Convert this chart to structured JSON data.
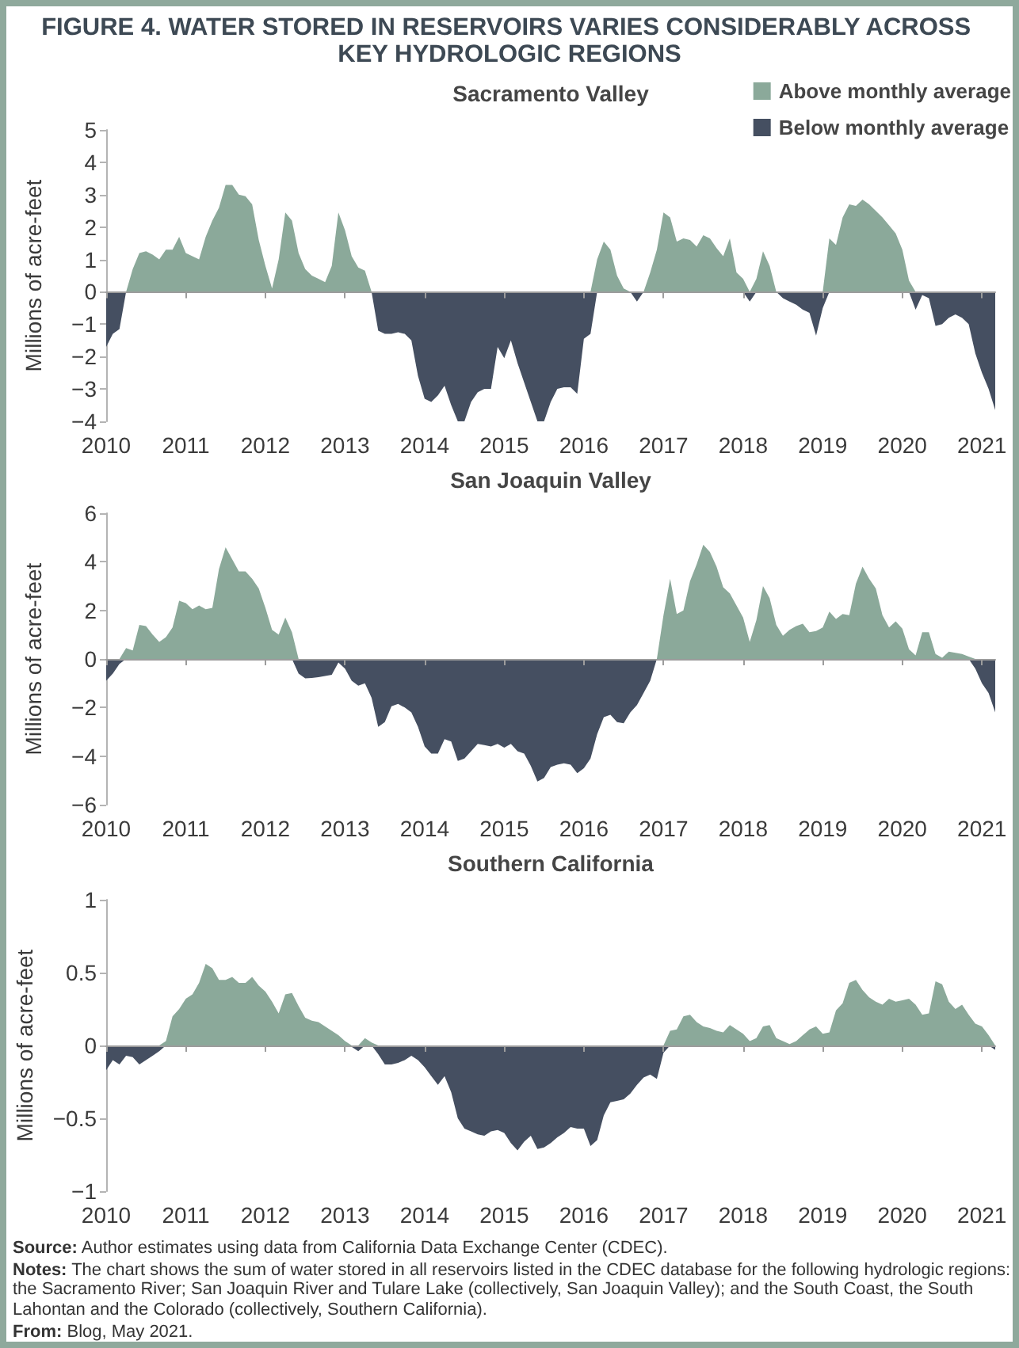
{
  "chart_data": [
    {
      "type": "area",
      "title": "FIGURE 4. WATER STORED IN RESERVOIRS VARIES CONSIDERABLY ACROSS KEY HYDROLOGIC REGIONS",
      "subtitle": "Sacramento Valley",
      "ylabel": "Millions of acre-feet",
      "x": [
        "2010-01",
        "2010-02",
        "2010-03",
        "2010-04",
        "2010-05",
        "2010-06",
        "2010-07",
        "2010-08",
        "2010-09",
        "2010-10",
        "2010-11",
        "2010-12",
        "2011-01",
        "2011-02",
        "2011-03",
        "2011-04",
        "2011-05",
        "2011-06",
        "2011-07",
        "2011-08",
        "2011-09",
        "2011-10",
        "2011-11",
        "2011-12",
        "2012-01",
        "2012-02",
        "2012-03",
        "2012-04",
        "2012-05",
        "2012-06",
        "2012-07",
        "2012-08",
        "2012-09",
        "2012-10",
        "2012-11",
        "2012-12",
        "2013-01",
        "2013-02",
        "2013-03",
        "2013-04",
        "2013-05",
        "2013-06",
        "2013-07",
        "2013-08",
        "2013-09",
        "2013-10",
        "2013-11",
        "2013-12",
        "2014-01",
        "2014-02",
        "2014-03",
        "2014-04",
        "2014-05",
        "2014-06",
        "2014-07",
        "2014-08",
        "2014-09",
        "2014-10",
        "2014-11",
        "2014-12",
        "2015-01",
        "2015-02",
        "2015-03",
        "2015-04",
        "2015-05",
        "2015-06",
        "2015-07",
        "2015-08",
        "2015-09",
        "2015-10",
        "2015-11",
        "2015-12",
        "2016-01",
        "2016-02",
        "2016-03",
        "2016-04",
        "2016-05",
        "2016-06",
        "2016-07",
        "2016-08",
        "2016-09",
        "2016-10",
        "2016-11",
        "2016-12",
        "2017-01",
        "2017-02",
        "2017-03",
        "2017-04",
        "2017-05",
        "2017-06",
        "2017-07",
        "2017-08",
        "2017-09",
        "2017-10",
        "2017-11",
        "2017-12",
        "2018-01",
        "2018-02",
        "2018-03",
        "2018-04",
        "2018-05",
        "2018-06",
        "2018-07",
        "2018-08",
        "2018-09",
        "2018-10",
        "2018-11",
        "2018-12",
        "2019-01",
        "2019-02",
        "2019-03",
        "2019-04",
        "2019-05",
        "2019-06",
        "2019-07",
        "2019-08",
        "2019-09",
        "2019-10",
        "2019-11",
        "2019-12",
        "2020-01",
        "2020-02",
        "2020-03",
        "2020-04",
        "2020-05",
        "2020-06",
        "2020-07",
        "2020-08",
        "2020-09",
        "2020-10",
        "2020-11",
        "2020-12",
        "2021-01",
        "2021-02",
        "2021-03"
      ],
      "xlim": [
        "2010-01",
        "2021-03"
      ],
      "xticks": [
        "2010",
        "2011",
        "2012",
        "2013",
        "2014",
        "2015",
        "2016",
        "2017",
        "2018",
        "2019",
        "2020",
        "2021"
      ],
      "ylim": [
        -4,
        5
      ],
      "yticks": [
        {
          "value": -4,
          "label": "−4"
        },
        {
          "value": -3,
          "label": "−3"
        },
        {
          "value": -2,
          "label": "−2"
        },
        {
          "value": -1,
          "label": "−1"
        },
        {
          "value": 0,
          "label": "0"
        },
        {
          "value": 1,
          "label": "1"
        },
        {
          "value": 2,
          "label": "2"
        },
        {
          "value": 3,
          "label": "3"
        },
        {
          "value": 4,
          "label": "4"
        },
        {
          "value": 5,
          "label": "5"
        }
      ],
      "legend": "top right",
      "series": [
        {
          "name": "Above monthly average",
          "color": "#8ba99a",
          "values": [
            0,
            0,
            0,
            0,
            0.7,
            1.2,
            1.25,
            1.15,
            1,
            1.3,
            1.3,
            1.7,
            1.2,
            1.1,
            1,
            1.7,
            2.2,
            2.6,
            3.3,
            3.3,
            3,
            2.95,
            2.7,
            1.6,
            0.8,
            0.1,
            1,
            2.45,
            2.2,
            1.2,
            0.7,
            0.5,
            0.4,
            0.3,
            0.8,
            2.45,
            1.9,
            1.1,
            0.75,
            0.65,
            0,
            0,
            0,
            0,
            0,
            0,
            0,
            0,
            0,
            0,
            0,
            0,
            0,
            0,
            0,
            0,
            0,
            0,
            0,
            0,
            0,
            0,
            0,
            0,
            0,
            0,
            0,
            0,
            0,
            0,
            0,
            0,
            0,
            0,
            1,
            1.55,
            1.3,
            0.5,
            0.1,
            0,
            0,
            0,
            0.6,
            1.3,
            2.45,
            2.3,
            1.55,
            1.65,
            1.6,
            1.4,
            1.75,
            1.65,
            1.35,
            1.1,
            1.65,
            0.6,
            0.4,
            0,
            0.4,
            1.25,
            0.8,
            0,
            0,
            0,
            0,
            0,
            0,
            0,
            0,
            1.65,
            1.45,
            2.3,
            2.7,
            2.65,
            2.85,
            2.7,
            2.5,
            2.3,
            2.05,
            1.8,
            1.3,
            0.35,
            0,
            0,
            0,
            0,
            0,
            0,
            0,
            0,
            0,
            0,
            0,
            0,
            0
          ]
        },
        {
          "name": "Below monthly average",
          "color": "#454f61",
          "values": [
            -1.7,
            -1.3,
            -1.15,
            0,
            0,
            0,
            0,
            0,
            0,
            0,
            0,
            0,
            0,
            0,
            0,
            0,
            0,
            0,
            0,
            0,
            0,
            0,
            0,
            0,
            0,
            0,
            0,
            0,
            0,
            0,
            0,
            0,
            0,
            0,
            0,
            0,
            0,
            0,
            0,
            0,
            0,
            -1.2,
            -1.3,
            -1.3,
            -1.25,
            -1.3,
            -1.5,
            -2.6,
            -3.3,
            -3.4,
            -3.2,
            -2.9,
            -3.5,
            -4,
            -4,
            -3.4,
            -3.1,
            -3,
            -3,
            -1.7,
            -2.05,
            -1.5,
            -2.2,
            -2.8,
            -3.4,
            -4,
            -4,
            -3.4,
            -3,
            -2.95,
            -2.95,
            -3.15,
            -1.45,
            -1.3,
            0,
            0,
            0,
            0,
            0,
            0,
            -0.3,
            0,
            0,
            0,
            0,
            0,
            0,
            0,
            0,
            0,
            0,
            0,
            0,
            0,
            0,
            0,
            0,
            -0.3,
            0,
            0,
            0,
            0,
            -0.2,
            -0.3,
            -0.4,
            -0.55,
            -0.65,
            -1.35,
            -0.5,
            0,
            0,
            0,
            0,
            0,
            0,
            0,
            0,
            0,
            0,
            0,
            0,
            0,
            -0.55,
            -0.1,
            -0.2,
            -1.05,
            -1,
            -0.8,
            -0.7,
            -0.8,
            -1,
            -1.9,
            -2.5,
            -3,
            -3.65
          ]
        }
      ]
    },
    {
      "type": "area",
      "title": "San Joaquin Valley",
      "ylabel": "Millions of acre-feet",
      "x": [
        "2010-01",
        "2010-02",
        "2010-03",
        "2010-04",
        "2010-05",
        "2010-06",
        "2010-07",
        "2010-08",
        "2010-09",
        "2010-10",
        "2010-11",
        "2010-12",
        "2011-01",
        "2011-02",
        "2011-03",
        "2011-04",
        "2011-05",
        "2011-06",
        "2011-07",
        "2011-08",
        "2011-09",
        "2011-10",
        "2011-11",
        "2011-12",
        "2012-01",
        "2012-02",
        "2012-03",
        "2012-04",
        "2012-05",
        "2012-06",
        "2012-07",
        "2012-08",
        "2012-09",
        "2012-10",
        "2012-11",
        "2012-12",
        "2013-01",
        "2013-02",
        "2013-03",
        "2013-04",
        "2013-05",
        "2013-06",
        "2013-07",
        "2013-08",
        "2013-09",
        "2013-10",
        "2013-11",
        "2013-12",
        "2014-01",
        "2014-02",
        "2014-03",
        "2014-04",
        "2014-05",
        "2014-06",
        "2014-07",
        "2014-08",
        "2014-09",
        "2014-10",
        "2014-11",
        "2014-12",
        "2015-01",
        "2015-02",
        "2015-03",
        "2015-04",
        "2015-05",
        "2015-06",
        "2015-07",
        "2015-08",
        "2015-09",
        "2015-10",
        "2015-11",
        "2015-12",
        "2016-01",
        "2016-02",
        "2016-03",
        "2016-04",
        "2016-05",
        "2016-06",
        "2016-07",
        "2016-08",
        "2016-09",
        "2016-10",
        "2016-11",
        "2016-12",
        "2017-01",
        "2017-02",
        "2017-03",
        "2017-04",
        "2017-05",
        "2017-06",
        "2017-07",
        "2017-08",
        "2017-09",
        "2017-10",
        "2017-11",
        "2017-12",
        "2018-01",
        "2018-02",
        "2018-03",
        "2018-04",
        "2018-05",
        "2018-06",
        "2018-07",
        "2018-08",
        "2018-09",
        "2018-10",
        "2018-11",
        "2018-12",
        "2019-01",
        "2019-02",
        "2019-03",
        "2019-04",
        "2019-05",
        "2019-06",
        "2019-07",
        "2019-08",
        "2019-09",
        "2019-10",
        "2019-11",
        "2019-12",
        "2020-01",
        "2020-02",
        "2020-03",
        "2020-04",
        "2020-05",
        "2020-06",
        "2020-07",
        "2020-08",
        "2020-09",
        "2020-10",
        "2020-11",
        "2020-12",
        "2021-01",
        "2021-02",
        "2021-03"
      ],
      "xlim": [
        "2010-01",
        "2021-03"
      ],
      "xticks": [
        "2010",
        "2011",
        "2012",
        "2013",
        "2014",
        "2015",
        "2016",
        "2017",
        "2018",
        "2019",
        "2020",
        "2021"
      ],
      "ylim": [
        -6,
        6
      ],
      "yticks": [
        {
          "value": -6,
          "label": "−6"
        },
        {
          "value": -4,
          "label": "−4"
        },
        {
          "value": -2,
          "label": "−2"
        },
        {
          "value": 0,
          "label": "0"
        },
        {
          "value": 2,
          "label": "2"
        },
        {
          "value": 4,
          "label": "4"
        },
        {
          "value": 6,
          "label": "6"
        }
      ],
      "series": [
        {
          "color": "#8ba99a",
          "values": [
            0,
            0,
            0,
            0.45,
            0.35,
            1.4,
            1.35,
            1,
            0.7,
            0.9,
            1.3,
            2.4,
            2.3,
            2.05,
            2.2,
            2.05,
            2.1,
            3.7,
            4.6,
            4.1,
            3.6,
            3.6,
            3.3,
            2.9,
            2.1,
            1.2,
            1,
            1.7,
            1.1,
            0,
            0,
            0,
            0,
            0,
            0,
            0,
            0,
            0,
            0,
            0,
            0,
            0,
            0,
            0,
            0,
            0,
            0,
            0,
            0,
            0,
            0,
            0,
            0,
            0,
            0,
            0,
            0,
            0,
            0,
            0,
            0,
            0,
            0,
            0,
            0,
            0,
            0,
            0,
            0,
            0,
            0,
            0,
            0,
            0,
            0,
            0,
            0,
            0,
            0,
            0,
            0,
            0,
            0,
            0,
            1.8,
            3.3,
            1.85,
            2,
            3.2,
            3.9,
            4.7,
            4.4,
            3.8,
            2.95,
            2.7,
            2.2,
            1.7,
            0.7,
            1.6,
            3,
            2.5,
            1.4,
            0.95,
            1.2,
            1.35,
            1.45,
            1.1,
            1.15,
            1.3,
            1.95,
            1.65,
            1.85,
            1.8,
            3.1,
            3.8,
            3.3,
            2.9,
            1.8,
            1.3,
            1.55,
            1.25,
            0.4,
            0.15,
            1.1,
            1.1,
            0.2,
            0.05,
            0.3,
            0.25,
            0.2,
            0.1,
            0,
            0,
            0,
            0
          ]
        },
        {
          "color": "#454f61",
          "values": [
            -0.9,
            -0.6,
            -0.2,
            0,
            0,
            0,
            0,
            0,
            0,
            0,
            0,
            0,
            0,
            0,
            0,
            0,
            0,
            0,
            0,
            0,
            0,
            0,
            0,
            0,
            0,
            0,
            0,
            0,
            0,
            -0.6,
            -0.8,
            -0.78,
            -0.75,
            -0.7,
            -0.65,
            -0.15,
            -0.4,
            -0.9,
            -1.1,
            -1,
            -1.6,
            -2.8,
            -2.6,
            -1.95,
            -1.85,
            -2,
            -2.2,
            -2.8,
            -3.6,
            -3.9,
            -3.9,
            -3.3,
            -3.4,
            -4.2,
            -4.1,
            -3.8,
            -3.5,
            -3.55,
            -3.6,
            -3.5,
            -3.65,
            -3.5,
            -3.8,
            -3.9,
            -4.4,
            -5.05,
            -4.9,
            -4.45,
            -4.35,
            -4.3,
            -4.35,
            -4.7,
            -4.5,
            -4.1,
            -3.1,
            -2.4,
            -2.3,
            -2.6,
            -2.65,
            -2.2,
            -1.9,
            -1.4,
            -0.9,
            0,
            0,
            0,
            0,
            0,
            0,
            0,
            0,
            0,
            0,
            0,
            0,
            0,
            0,
            0,
            0,
            0,
            0,
            0,
            0,
            0,
            0,
            0,
            0,
            0,
            0,
            0,
            0,
            0,
            0,
            0,
            0,
            0,
            0,
            0,
            0,
            0,
            0,
            0,
            0,
            0,
            0,
            0,
            0,
            0,
            0,
            0,
            0,
            -0.4,
            -1,
            -1.4,
            -2.2
          ]
        }
      ]
    },
    {
      "type": "area",
      "title": "Southern California",
      "ylabel": "Millions of acre-feet",
      "x": [
        "2010-01",
        "2010-02",
        "2010-03",
        "2010-04",
        "2010-05",
        "2010-06",
        "2010-07",
        "2010-08",
        "2010-09",
        "2010-10",
        "2010-11",
        "2010-12",
        "2011-01",
        "2011-02",
        "2011-03",
        "2011-04",
        "2011-05",
        "2011-06",
        "2011-07",
        "2011-08",
        "2011-09",
        "2011-10",
        "2011-11",
        "2011-12",
        "2012-01",
        "2012-02",
        "2012-03",
        "2012-04",
        "2012-05",
        "2012-06",
        "2012-07",
        "2012-08",
        "2012-09",
        "2012-10",
        "2012-11",
        "2012-12",
        "2013-01",
        "2013-02",
        "2013-03",
        "2013-04",
        "2013-05",
        "2013-06",
        "2013-07",
        "2013-08",
        "2013-09",
        "2013-10",
        "2013-11",
        "2013-12",
        "2014-01",
        "2014-02",
        "2014-03",
        "2014-04",
        "2014-05",
        "2014-06",
        "2014-07",
        "2014-08",
        "2014-09",
        "2014-10",
        "2014-11",
        "2014-12",
        "2015-01",
        "2015-02",
        "2015-03",
        "2015-04",
        "2015-05",
        "2015-06",
        "2015-07",
        "2015-08",
        "2015-09",
        "2015-10",
        "2015-11",
        "2015-12",
        "2016-01",
        "2016-02",
        "2016-03",
        "2016-04",
        "2016-05",
        "2016-06",
        "2016-07",
        "2016-08",
        "2016-09",
        "2016-10",
        "2016-11",
        "2016-12",
        "2017-01",
        "2017-02",
        "2017-03",
        "2017-04",
        "2017-05",
        "2017-06",
        "2017-07",
        "2017-08",
        "2017-09",
        "2017-10",
        "2017-11",
        "2017-12",
        "2018-01",
        "2018-02",
        "2018-03",
        "2018-04",
        "2018-05",
        "2018-06",
        "2018-07",
        "2018-08",
        "2018-09",
        "2018-10",
        "2018-11",
        "2018-12",
        "2019-01",
        "2019-02",
        "2019-03",
        "2019-04",
        "2019-05",
        "2019-06",
        "2019-07",
        "2019-08",
        "2019-09",
        "2019-10",
        "2019-11",
        "2019-12",
        "2020-01",
        "2020-02",
        "2020-03",
        "2020-04",
        "2020-05",
        "2020-06",
        "2020-07",
        "2020-08",
        "2020-09",
        "2020-10",
        "2020-11",
        "2020-12",
        "2021-01",
        "2021-02",
        "2021-03"
      ],
      "xlim": [
        "2010-01",
        "2021-03"
      ],
      "xticks": [
        "2010",
        "2011",
        "2012",
        "2013",
        "2014",
        "2015",
        "2016",
        "2017",
        "2018",
        "2019",
        "2020",
        "2021"
      ],
      "ylim": [
        -1,
        1
      ],
      "yticks": [
        {
          "value": -1,
          "label": "−1"
        },
        {
          "value": -0.5,
          "label": "−0.5"
        },
        {
          "value": 0,
          "label": "0"
        },
        {
          "value": 0.5,
          "label": "0.5"
        },
        {
          "value": 1,
          "label": "1"
        }
      ],
      "series": [
        {
          "color": "#8ba99a",
          "values": [
            0,
            0,
            0,
            0,
            0,
            0,
            0,
            0,
            0,
            0.03,
            0.2,
            0.25,
            0.32,
            0.35,
            0.43,
            0.56,
            0.53,
            0.45,
            0.45,
            0.47,
            0.43,
            0.43,
            0.47,
            0.41,
            0.37,
            0.3,
            0.22,
            0.35,
            0.36,
            0.27,
            0.19,
            0.17,
            0.16,
            0.13,
            0.1,
            0.07,
            0.03,
            0,
            0,
            0.05,
            0.02,
            0,
            0,
            0,
            0,
            0,
            0,
            0,
            0,
            0,
            0,
            0,
            0,
            0,
            0,
            0,
            0,
            0,
            0,
            0,
            0,
            0,
            0,
            0,
            0,
            0,
            0,
            0,
            0,
            0,
            0,
            0,
            0,
            0,
            0,
            0,
            0,
            0,
            0,
            0,
            0,
            0,
            0,
            0,
            0,
            0.1,
            0.11,
            0.2,
            0.21,
            0.16,
            0.13,
            0.12,
            0.1,
            0.09,
            0.14,
            0.11,
            0.08,
            0.03,
            0.05,
            0.13,
            0.14,
            0.05,
            0.03,
            0.01,
            0.03,
            0.07,
            0.11,
            0.13,
            0.08,
            0.09,
            0.24,
            0.29,
            0.43,
            0.45,
            0.38,
            0.33,
            0.3,
            0.28,
            0.32,
            0.3,
            0.31,
            0.32,
            0.28,
            0.21,
            0.22,
            0.44,
            0.42,
            0.3,
            0.25,
            0.28,
            0.21,
            0.15,
            0.13,
            0.07,
            0
          ]
        },
        {
          "color": "#454f61",
          "values": [
            -0.17,
            -0.1,
            -0.13,
            -0.07,
            -0.08,
            -0.13,
            -0.1,
            -0.07,
            -0.04,
            0,
            0,
            0,
            0,
            0,
            0,
            0,
            0,
            0,
            0,
            0,
            0,
            0,
            0,
            0,
            0,
            0,
            0,
            0,
            0,
            0,
            0,
            0,
            0,
            0,
            0,
            0,
            0,
            -0.01,
            -0.04,
            0,
            0,
            -0.06,
            -0.13,
            -0.13,
            -0.12,
            -0.1,
            -0.07,
            -0.1,
            -0.15,
            -0.21,
            -0.27,
            -0.21,
            -0.32,
            -0.5,
            -0.57,
            -0.59,
            -0.61,
            -0.62,
            -0.59,
            -0.58,
            -0.6,
            -0.67,
            -0.72,
            -0.66,
            -0.62,
            -0.71,
            -0.7,
            -0.67,
            -0.63,
            -0.6,
            -0.56,
            -0.57,
            -0.57,
            -0.69,
            -0.65,
            -0.48,
            -0.39,
            -0.38,
            -0.37,
            -0.33,
            -0.27,
            -0.22,
            -0.2,
            -0.23,
            -0.05,
            0,
            0,
            0,
            0,
            0,
            0,
            0,
            0,
            0,
            0,
            0,
            0,
            0,
            0,
            0,
            0,
            0,
            0,
            0,
            0,
            0,
            0,
            0,
            0,
            0,
            0,
            0,
            0,
            0,
            0,
            0,
            0,
            0,
            0,
            0,
            0,
            0,
            0,
            0,
            0,
            0,
            0,
            0,
            0,
            0,
            0,
            0,
            0,
            0,
            -0.03
          ]
        }
      ],
      "annotations": [
        "Source: Author estimates using data from California Data Exchange Center (CDEC).",
        "Notes: The chart shows the sum of water stored in all reservoirs listed in the CDEC database for the following hydrologic regions: the Sacramento River; San Joaquin River and Tulare Lake (collectively, San Joaquin Valley); and the South Coast, the South Lahontan and the Colorado (collectively, Southern California).",
        "From: Blog, May 2021."
      ]
    }
  ]
}
